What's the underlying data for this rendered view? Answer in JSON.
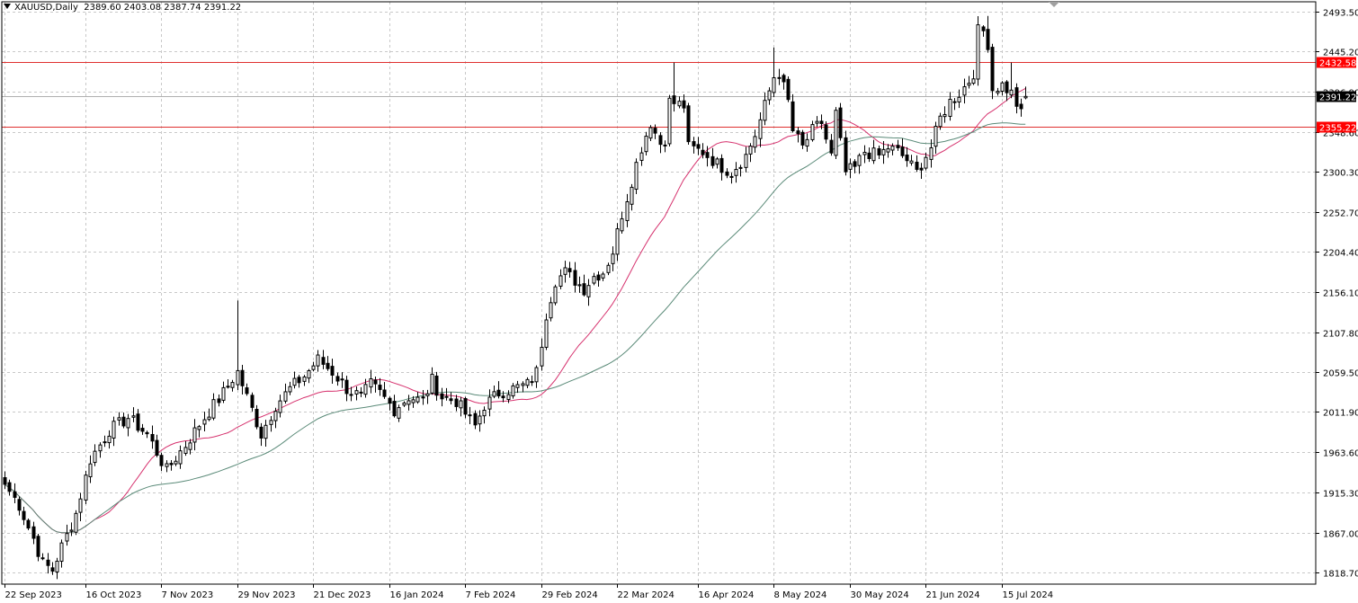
{
  "header": {
    "symbol": "XAUUSD,Daily",
    "ohlc": "2389.60 2403.08 2387.74 2391.22"
  },
  "colors": {
    "background": "#ffffff",
    "grid": "#c8c8c8",
    "candle": "#000000",
    "ma_fast": "#d6326e",
    "ma_slow": "#5a8a78",
    "hline": "#e0302e",
    "hline_label_bg": "#ff0000",
    "price_label_bg": "#000000"
  },
  "chart_data": {
    "type": "candlestick",
    "ylim": [
      1805,
      2505
    ],
    "price_ticks": [
      "2493.50",
      "2445.20",
      "2396.90",
      "2348.60",
      "2300.30",
      "2252.70",
      "2204.40",
      "2156.10",
      "2107.80",
      "2059.50",
      "2011.90",
      "1963.60",
      "1915.30",
      "1867.00",
      "1818.70"
    ],
    "date_ticks": [
      {
        "label": "22 Sep 2023",
        "bar": 0
      },
      {
        "label": "16 Oct 2023",
        "bar": 17
      },
      {
        "label": "7 Nov 2023",
        "bar": 33
      },
      {
        "label": "29 Nov 2023",
        "bar": 49
      },
      {
        "label": "21 Dec 2023",
        "bar": 65
      },
      {
        "label": "16 Jan 2024",
        "bar": 81
      },
      {
        "label": "7 Feb 2024",
        "bar": 97
      },
      {
        "label": "29 Feb 2024",
        "bar": 113
      },
      {
        "label": "22 Mar 2024",
        "bar": 129
      },
      {
        "label": "16 Apr 2024",
        "bar": 146
      },
      {
        "label": "8 May 2024",
        "bar": 162
      },
      {
        "label": "30 May 2024",
        "bar": 178
      },
      {
        "label": "21 Jun 2024",
        "bar": 194
      },
      {
        "label": "15 Jul 2024",
        "bar": 210
      }
    ],
    "horizontal_lines": [
      {
        "label": "2432.58",
        "value": 2432.58
      },
      {
        "label": "2355.22",
        "value": 2355.22
      }
    ],
    "current_price": {
      "label": "2391.22",
      "value": 2391.22
    },
    "moving_averages": [
      {
        "period": 20,
        "color_key": "ma_fast"
      },
      {
        "period": 50,
        "color_key": "ma_slow"
      }
    ],
    "close_anchors": [
      [
        0,
        1925
      ],
      [
        3,
        1900
      ],
      [
        6,
        1860
      ],
      [
        8,
        1830
      ],
      [
        10,
        1822
      ],
      [
        12,
        1850
      ],
      [
        15,
        1890
      ],
      [
        18,
        1955
      ],
      [
        22,
        1990
      ],
      [
        26,
        2005
      ],
      [
        30,
        1985
      ],
      [
        34,
        1942
      ],
      [
        38,
        1972
      ],
      [
        42,
        2005
      ],
      [
        46,
        2035
      ],
      [
        49,
        2060
      ],
      [
        51,
        2030
      ],
      [
        54,
        1985
      ],
      [
        57,
        2020
      ],
      [
        60,
        2040
      ],
      [
        63,
        2055
      ],
      [
        66,
        2075
      ],
      [
        69,
        2060
      ],
      [
        72,
        2040
      ],
      [
        75,
        2030
      ],
      [
        77,
        2045
      ],
      [
        79,
        2035
      ],
      [
        82,
        2015
      ],
      [
        85,
        2030
      ],
      [
        88,
        2025
      ],
      [
        90,
        2050
      ],
      [
        92,
        2030
      ],
      [
        95,
        2025
      ],
      [
        97,
        2010
      ],
      [
        99,
        1995
      ],
      [
        101,
        2020
      ],
      [
        104,
        2035
      ],
      [
        107,
        2040
      ],
      [
        110,
        2045
      ],
      [
        112,
        2060
      ],
      [
        114,
        2130
      ],
      [
        116,
        2170
      ],
      [
        118,
        2180
      ],
      [
        120,
        2170
      ],
      [
        122,
        2160
      ],
      [
        124,
        2175
      ],
      [
        126,
        2180
      ],
      [
        128,
        2205
      ],
      [
        130,
        2250
      ],
      [
        132,
        2290
      ],
      [
        134,
        2330
      ],
      [
        136,
        2360
      ],
      [
        138,
        2335
      ],
      [
        139,
        2340
      ],
      [
        140,
        2385
      ],
      [
        143,
        2380
      ],
      [
        144,
        2330
      ],
      [
        147,
        2325
      ],
      [
        150,
        2310
      ],
      [
        153,
        2300
      ],
      [
        156,
        2320
      ],
      [
        158,
        2345
      ],
      [
        160,
        2380
      ],
      [
        162,
        2415
      ],
      [
        163,
        2420
      ],
      [
        165,
        2385
      ],
      [
        166,
        2350
      ],
      [
        168,
        2330
      ],
      [
        170,
        2350
      ],
      [
        172,
        2360
      ],
      [
        174,
        2320
      ],
      [
        175,
        2370
      ],
      [
        177,
        2300
      ],
      [
        179,
        2305
      ],
      [
        181,
        2325
      ],
      [
        184,
        2320
      ],
      [
        186,
        2330
      ],
      [
        188,
        2325
      ],
      [
        190,
        2315
      ],
      [
        192,
        2300
      ],
      [
        195,
        2330
      ],
      [
        197,
        2365
      ],
      [
        199,
        2385
      ],
      [
        201,
        2395
      ],
      [
        203,
        2410
      ],
      [
        204,
        2420
      ],
      [
        205,
        2470
      ],
      [
        206,
        2470
      ],
      [
        207,
        2455
      ],
      [
        208,
        2400
      ],
      [
        210,
        2405
      ],
      [
        212,
        2395
      ],
      [
        214,
        2370
      ],
      [
        215,
        2391.22
      ]
    ]
  }
}
